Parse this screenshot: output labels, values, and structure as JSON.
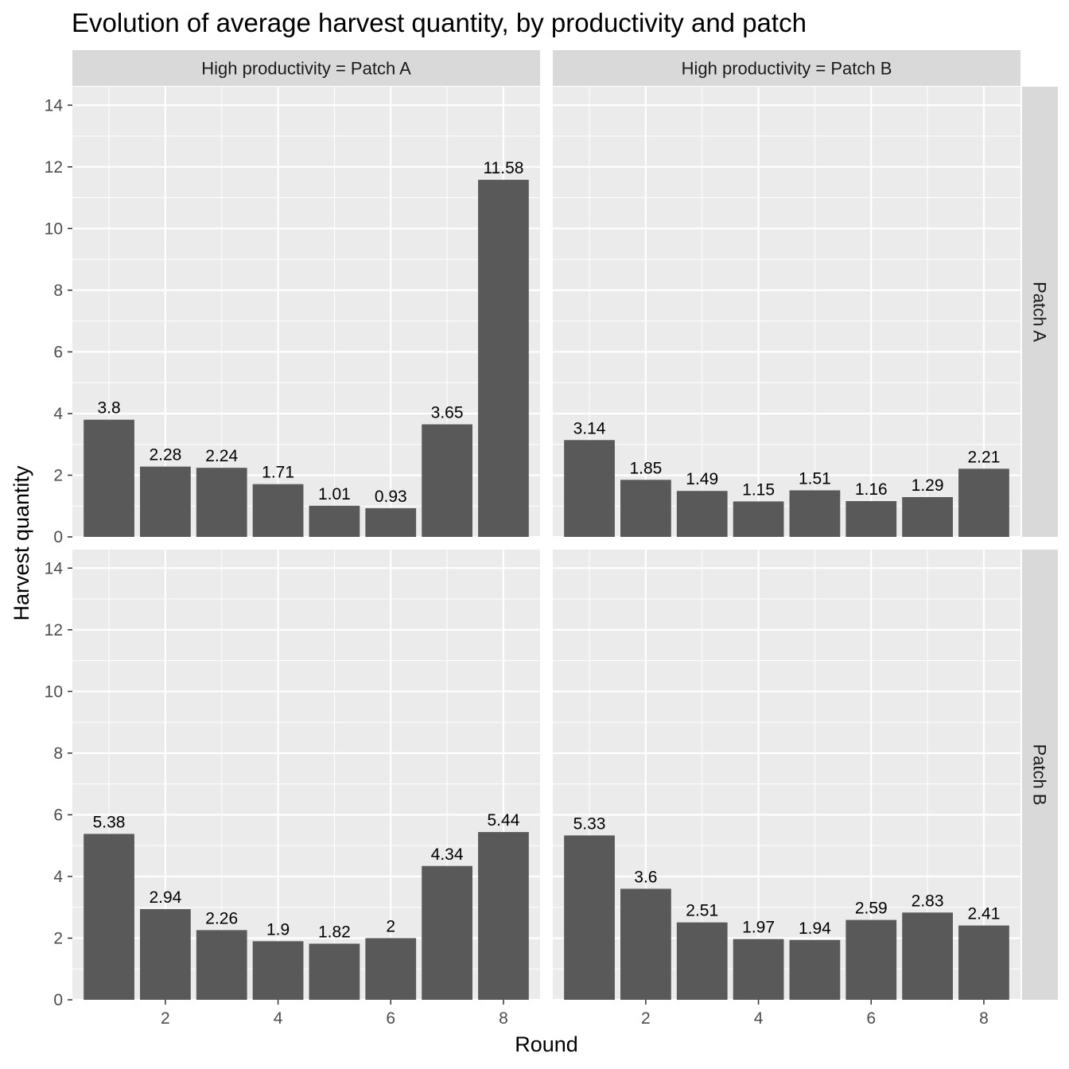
{
  "chart_data": {
    "type": "bar",
    "title": "Evolution of average harvest quantity, by productivity and patch",
    "xlabel": "Round",
    "ylabel": "Harvest quantity",
    "x": [
      1,
      2,
      3,
      4,
      5,
      6,
      7,
      8
    ],
    "x_ticks": [
      2,
      4,
      6,
      8
    ],
    "y_ticks": [
      0,
      2,
      4,
      6,
      8,
      10,
      12,
      14
    ],
    "xlim": [
      0.35,
      8.65
    ],
    "ylim": [
      0,
      14.6
    ],
    "bar_color": "#595959",
    "panel_background": "#ebebeb",
    "strip_background": "#d9d9d9",
    "grid": true,
    "facets": {
      "columns": [
        "High productivity = Patch A",
        "High productivity = Patch B"
      ],
      "rows": [
        "Patch A",
        "Patch B"
      ]
    },
    "panels": [
      {
        "column": "High productivity = Patch A",
        "row": "Patch A",
        "values": [
          3.8,
          2.28,
          2.24,
          1.71,
          1.01,
          0.93,
          3.65,
          11.58
        ]
      },
      {
        "column": "High productivity = Patch B",
        "row": "Patch A",
        "values": [
          3.14,
          1.85,
          1.49,
          1.15,
          1.51,
          1.16,
          1.29,
          2.21
        ]
      },
      {
        "column": "High productivity = Patch A",
        "row": "Patch B",
        "values": [
          5.38,
          2.94,
          2.26,
          1.9,
          1.82,
          2,
          4.34,
          5.44
        ]
      },
      {
        "column": "High productivity = Patch B",
        "row": "Patch B",
        "values": [
          5.33,
          3.6,
          2.51,
          1.97,
          1.94,
          2.59,
          2.83,
          2.41
        ]
      }
    ]
  }
}
